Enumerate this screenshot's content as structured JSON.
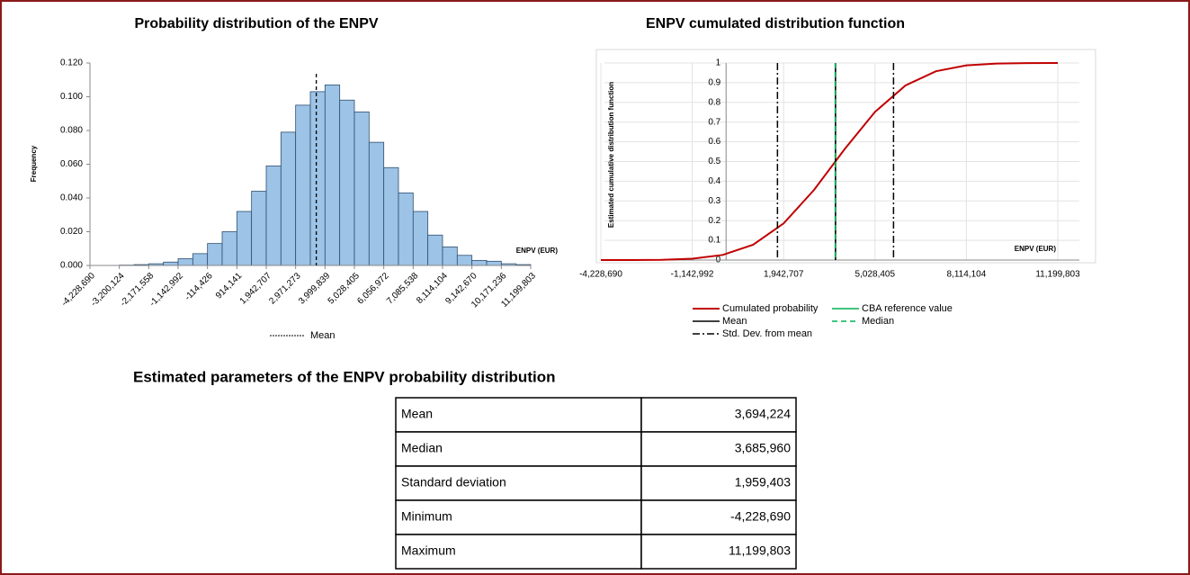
{
  "chart_data": [
    {
      "type": "histogram",
      "title": "Probability distribution of the ENPV",
      "y_label": "Frequency",
      "x_label": "ENPV (EUR)",
      "bins": [
        -4228690,
        -3714407,
        -3200124,
        -2685841,
        -2171558,
        -1657275,
        -1142992,
        -628709,
        -114426,
        399858,
        914141,
        1428424,
        1942707,
        2456990,
        2971273,
        3485556,
        3999839,
        4514122,
        5028405,
        5542689,
        6056972,
        6571255,
        7085538,
        7599821,
        8114104,
        8628387,
        9142670,
        9656953,
        10171236,
        10685519,
        11199803
      ],
      "values": [
        0,
        0,
        0.0002,
        0.0005,
        0.001,
        0.002,
        0.004,
        0.007,
        0.013,
        0.02,
        0.032,
        0.044,
        0.059,
        0.079,
        0.095,
        0.103,
        0.107,
        0.098,
        0.091,
        0.073,
        0.058,
        0.043,
        0.032,
        0.018,
        0.011,
        0.006,
        0.003,
        0.0025,
        0.001,
        0.0005
      ],
      "color": "#9dc3e6",
      "edge_color": "#2f4f6f",
      "xlim": [
        -4228690,
        11199803
      ],
      "xticks": [
        {
          "value": -4228690,
          "label": "-4,228,690"
        },
        {
          "value": -3200124,
          "label": "-3,200,124"
        },
        {
          "value": -2171558,
          "label": "-2,171,558"
        },
        {
          "value": -1142992,
          "label": "-1,142,992"
        },
        {
          "value": -114426,
          "label": "-114,426"
        },
        {
          "value": 914141,
          "label": "914,141"
        },
        {
          "value": 1942707,
          "label": "1,942,707"
        },
        {
          "value": 2971273,
          "label": "2,971,273"
        },
        {
          "value": 3999839,
          "label": "3,999,839"
        },
        {
          "value": 5028405,
          "label": "5,028,405"
        },
        {
          "value": 6056972,
          "label": "6,056,972"
        },
        {
          "value": 7085538,
          "label": "7,085,538"
        },
        {
          "value": 8114104,
          "label": "8,114,104"
        },
        {
          "value": 9142670,
          "label": "9,142,670"
        },
        {
          "value": 10171236,
          "label": "10,171,236"
        },
        {
          "value": 11199803,
          "label": "11,199,803"
        }
      ],
      "ylim": [
        0,
        0.12
      ],
      "yticks": [
        {
          "value": 0,
          "label": "0.000"
        },
        {
          "value": 0.02,
          "label": "0.020"
        },
        {
          "value": 0.04,
          "label": "0.040"
        },
        {
          "value": 0.06,
          "label": "0.060"
        },
        {
          "value": 0.08,
          "label": "0.080"
        },
        {
          "value": 0.1,
          "label": "0.100"
        },
        {
          "value": 0.12,
          "label": "0.120"
        }
      ],
      "mean": {
        "name": "Mean",
        "value": 3694224,
        "color": "#000000"
      }
    },
    {
      "type": "line",
      "title": "ENPV cumulated distribution function",
      "y_label": "Estimated cumulative distribution function",
      "x_label": "ENPV (EUR)",
      "x": [
        -4228690,
        -3200124,
        -2171558,
        -1142992,
        -114426,
        914141,
        1942707,
        2971273,
        3999839,
        5028405,
        6056972,
        7085538,
        8114104,
        9142670,
        10171236,
        11199803
      ],
      "series": [
        {
          "name": "Cumulated probability",
          "color": "#c00000",
          "values": [
            0,
            0.0002,
            0.0014,
            0.007,
            0.026,
            0.078,
            0.186,
            0.356,
            0.562,
            0.752,
            0.886,
            0.958,
            0.988,
            0.997,
            0.9995,
            1
          ]
        }
      ],
      "reference_lines": [
        {
          "name": "CBA reference value",
          "color": "#00b050",
          "style": "solid",
          "values": [
            3694224
          ]
        },
        {
          "name": "Mean",
          "color": "#000000",
          "style": "solid",
          "values": [
            3694224
          ]
        },
        {
          "name": "Median",
          "color": "#00b050",
          "style": "dashed",
          "values": [
            3685960
          ]
        },
        {
          "name": "Std. Dev. from mean",
          "color": "#000000",
          "style": "dashdot",
          "values": [
            1734821,
            5653627
          ]
        }
      ],
      "xlim": [
        -4228690,
        11199803
      ],
      "xticks": [
        {
          "value": -4228690,
          "label": "-4,228,690"
        },
        {
          "value": -1142992,
          "label": "-1,142,992"
        },
        {
          "value": 1942707,
          "label": "1,942,707"
        },
        {
          "value": 5028405,
          "label": "5,028,405"
        },
        {
          "value": 8114104,
          "label": "8,114,104"
        },
        {
          "value": 11199803,
          "label": "11,199,803"
        }
      ],
      "ylim": [
        0,
        1
      ],
      "yticks": [
        0,
        0.1,
        0.2,
        0.3,
        0.4,
        0.5,
        0.6,
        0.7,
        0.8,
        0.9,
        1
      ],
      "grid": true
    }
  ],
  "table": {
    "title": "Estimated parameters of the ENPV probability distribution",
    "rows": [
      [
        "Mean",
        "3,694,224"
      ],
      [
        "Median",
        "3,685,960"
      ],
      [
        "Standard deviation",
        "1,959,403"
      ],
      [
        "Minimum",
        "-4,228,690"
      ],
      [
        "Maximum",
        "11,199,803"
      ]
    ]
  }
}
